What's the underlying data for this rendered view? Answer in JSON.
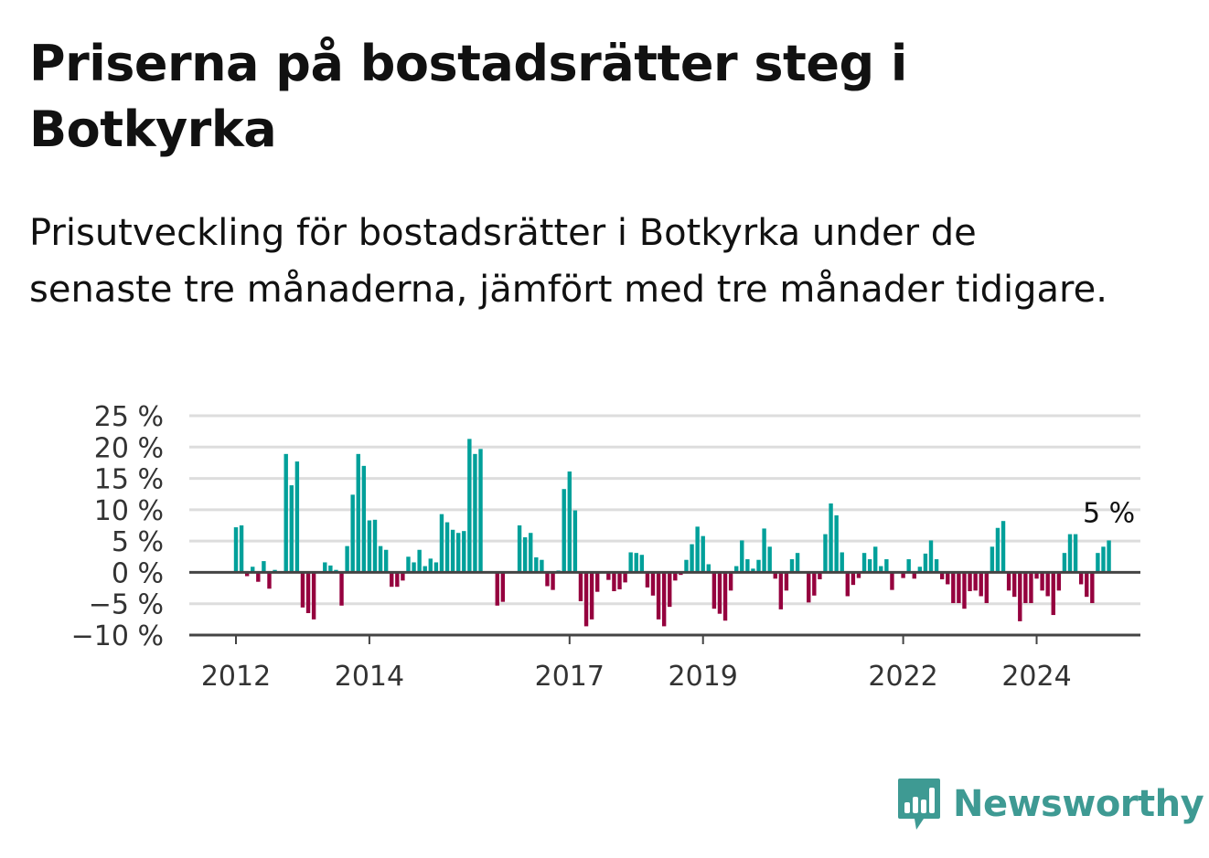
{
  "title": "Priserna på bostadsrätter steg i Botkyrka",
  "subtitle": "Prisutveckling för bostadsrätter i Botkyrka under de senaste tre månaderna, jämfört med tre månader tidigare.",
  "brand": {
    "name": "Newsworthy",
    "color": "#3e9a93"
  },
  "chart_data": {
    "type": "bar",
    "x_start": "2012-01",
    "frequency": "monthly",
    "unit": "%",
    "ylim": [
      -10,
      25
    ],
    "yticks": [
      25,
      20,
      15,
      10,
      5,
      0,
      -5,
      -10
    ],
    "ytick_labels": [
      "25 %",
      "20 %",
      "15 %",
      "10 %",
      "5 %",
      "0 %",
      "−5 %",
      "−10 %"
    ],
    "xticks": [
      {
        "label": "2012",
        "date": "2012-01"
      },
      {
        "label": "2014",
        "date": "2014-01"
      },
      {
        "label": "2017",
        "date": "2017-01"
      },
      {
        "label": "2019",
        "date": "2019-01"
      },
      {
        "label": "2022",
        "date": "2022-01"
      },
      {
        "label": "2024",
        "date": "2024-01"
      }
    ],
    "grid": true,
    "colors": {
      "positive": "#00a09a",
      "negative": "#95003e"
    },
    "last_value_label": "5 %",
    "values": [
      7.2,
      7.5,
      -0.6,
      0.9,
      -1.5,
      1.8,
      -2.6,
      0.4,
      null,
      18.9,
      13.9,
      17.7,
      -5.6,
      -6.5,
      -7.5,
      null,
      1.6,
      1.1,
      0.4,
      -5.3,
      4.2,
      12.4,
      18.9,
      17.0,
      8.3,
      8.4,
      4.2,
      3.6,
      -2.3,
      -2.3,
      -1.3,
      2.5,
      1.6,
      3.6,
      1.0,
      2.2,
      1.6,
      9.3,
      8.0,
      6.8,
      6.3,
      6.6,
      21.3,
      18.9,
      19.7,
      null,
      null,
      -5.3,
      -4.7,
      null,
      null,
      7.5,
      5.6,
      6.3,
      2.4,
      2.0,
      -2.2,
      -2.8,
      0.3,
      13.3,
      16.1,
      9.9,
      -4.6,
      -8.6,
      -7.5,
      -3.1,
      null,
      -1.2,
      -3.0,
      -2.7,
      -1.6,
      3.2,
      3.1,
      2.8,
      -2.4,
      -3.7,
      -7.5,
      -8.6,
      -5.5,
      -1.3,
      -0.4,
      2.0,
      4.5,
      7.3,
      5.8,
      1.3,
      -5.8,
      -6.6,
      -7.7,
      -2.9,
      1.0,
      5.1,
      2.1,
      0.6,
      2.0,
      7.0,
      4.1,
      -1.0,
      -5.9,
      -2.9,
      2.1,
      3.1,
      null,
      -4.8,
      -3.7,
      -1.1,
      6.1,
      11.0,
      9.1,
      3.2,
      -3.8,
      -2.0,
      -0.9,
      3.1,
      2.1,
      4.1,
      1.0,
      2.1,
      -2.8,
      null,
      -0.9,
      2.1,
      -1.0,
      0.9,
      3.0,
      5.1,
      2.1,
      -1.1,
      -1.9,
      -4.9,
      -4.9,
      -5.8,
      -3.0,
      -2.9,
      -3.8,
      -4.9,
      4.1,
      7.1,
      8.2,
      -2.9,
      -3.9,
      -7.8,
      -4.9,
      -4.9,
      -1.0,
      -2.9,
      -3.8,
      -6.8,
      -2.9,
      3.1,
      6.1,
      6.1,
      -1.9,
      -3.9,
      -4.9,
      3.1,
      4.1,
      5.1
    ]
  }
}
